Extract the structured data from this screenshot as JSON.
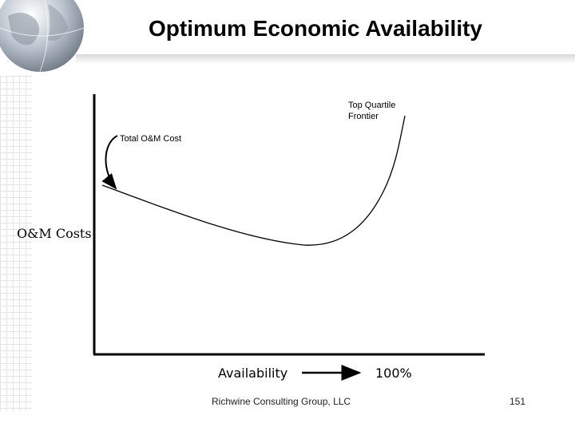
{
  "title": "Optimum Economic Availability",
  "diagram": {
    "y_axis_label": "O&M Costs",
    "x_axis_label": "Availability",
    "x_axis_end_label": "100%",
    "curve_label": "Total O&M Cost",
    "frontier_label_line1": "Top Quartile",
    "frontier_label_line2": "Frontier"
  },
  "footer": {
    "company": "Richwine Consulting Group, LLC",
    "page_number": "151"
  },
  "colors": {
    "line": "#000000",
    "background": "#ffffff"
  },
  "icons": [
    "globe-icon",
    "arrow-right-icon",
    "curved-arrow-icon"
  ]
}
